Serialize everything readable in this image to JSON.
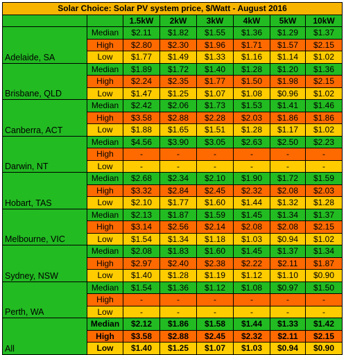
{
  "title": "Solar Choice: Solar PV system price, $/Watt - August 2016",
  "columns": [
    "1.5kW",
    "2kW",
    "3kW",
    "4kW",
    "5kW",
    "10kW"
  ],
  "row_labels": [
    "Median",
    "High",
    "Low"
  ],
  "colors": {
    "title": "#f7b500",
    "median": "#22bb22",
    "high": "#ff6a00",
    "low": "#ffcc00"
  },
  "regions": [
    {
      "name": "Adelaide, SA",
      "median": [
        "$2.11",
        "$1.82",
        "$1.55",
        "$1.36",
        "$1.29",
        "$1.37"
      ],
      "high": [
        "$2.80",
        "$2.30",
        "$1.96",
        "$1.71",
        "$1.57",
        "$2.15"
      ],
      "low": [
        "$1.77",
        "$1.49",
        "$1.33",
        "$1.16",
        "$1.14",
        "$1.02"
      ]
    },
    {
      "name": "Brisbane, QLD",
      "median": [
        "$1.89",
        "$1.72",
        "$1.40",
        "$1.28",
        "$1.20",
        "$1.36"
      ],
      "high": [
        "$2.24",
        "$2.35",
        "$1.77",
        "$1.50",
        "$1.98",
        "$2.15"
      ],
      "low": [
        "$1.47",
        "$1.25",
        "$1.07",
        "$1.08",
        "$0.96",
        "$1.02"
      ]
    },
    {
      "name": "Canberra, ACT",
      "median": [
        "$2.42",
        "$2.06",
        "$1.73",
        "$1.53",
        "$1.41",
        "$1.46"
      ],
      "high": [
        "$3.58",
        "$2.88",
        "$2.28",
        "$2.03",
        "$1.86",
        "$1.86"
      ],
      "low": [
        "$1.88",
        "$1.65",
        "$1.51",
        "$1.28",
        "$1.17",
        "$1.02"
      ]
    },
    {
      "name": "Darwin, NT",
      "median": [
        "$4.56",
        "$3.90",
        "$3.05",
        "$2.63",
        "$2.50",
        "$2.23"
      ],
      "high": [
        "-",
        "-",
        "-",
        "-",
        "-",
        "-"
      ],
      "low": [
        "-",
        "-",
        "-",
        "-",
        "-",
        "-"
      ]
    },
    {
      "name": "Hobart, TAS",
      "median": [
        "$2.68",
        "$2.34",
        "$2.10",
        "$1.90",
        "$1.72",
        "$1.59"
      ],
      "high": [
        "$3.32",
        "$2.84",
        "$2.45",
        "$2.32",
        "$2.08",
        "$2.03"
      ],
      "low": [
        "$2.10",
        "$1.77",
        "$1.60",
        "$1.44",
        "$1.32",
        "$1.28"
      ]
    },
    {
      "name": "Melbourne, VIC",
      "median": [
        "$2.13",
        "$1.87",
        "$1.59",
        "$1.45",
        "$1.34",
        "$1.37"
      ],
      "high": [
        "$3.14",
        "$2.56",
        "$2.14",
        "$2.08",
        "$2.08",
        "$2.15"
      ],
      "low": [
        "$1.54",
        "$1.34",
        "$1.18",
        "$1.03",
        "$0.94",
        "$1.02"
      ]
    },
    {
      "name": "Sydney, NSW",
      "median": [
        "$2.08",
        "$1.83",
        "$1.60",
        "$1.45",
        "$1.37",
        "$1.34"
      ],
      "high": [
        "$2.97",
        "$2.40",
        "$2.38",
        "$2.22",
        "$2.11",
        "$1.87"
      ],
      "low": [
        "$1.40",
        "$1.28",
        "$1.19",
        "$1.12",
        "$1.10",
        "$0.90"
      ]
    },
    {
      "name": "Perth, WA",
      "median": [
        "$1.54",
        "$1.36",
        "$1.12",
        "$1.08",
        "$0.97",
        "$1.50"
      ],
      "high": [
        "-",
        "-",
        "-",
        "-",
        "-",
        "-"
      ],
      "low": [
        "-",
        "-",
        "-",
        "-",
        "-",
        "-"
      ]
    },
    {
      "name": "All",
      "median": [
        "$2.12",
        "$1.86",
        "$1.58",
        "$1.44",
        "$1.33",
        "$1.42"
      ],
      "high": [
        "$3.58",
        "$2.88",
        "$2.45",
        "$2.32",
        "$2.11",
        "$2.15"
      ],
      "low": [
        "$1.40",
        "$1.25",
        "$1.07",
        "$1.03",
        "$0.94",
        "$0.90"
      ],
      "bold": true
    }
  ]
}
